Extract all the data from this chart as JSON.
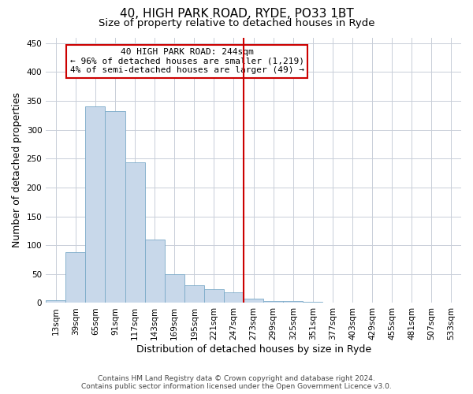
{
  "title": "40, HIGH PARK ROAD, RYDE, PO33 1BT",
  "subtitle": "Size of property relative to detached houses in Ryde",
  "xlabel": "Distribution of detached houses by size in Ryde",
  "ylabel": "Number of detached properties",
  "categories": [
    "13sqm",
    "39sqm",
    "65sqm",
    "91sqm",
    "117sqm",
    "143sqm",
    "169sqm",
    "195sqm",
    "221sqm",
    "247sqm",
    "273sqm",
    "299sqm",
    "325sqm",
    "351sqm",
    "377sqm",
    "403sqm",
    "429sqm",
    "455sqm",
    "481sqm",
    "507sqm",
    "533sqm"
  ],
  "values": [
    5,
    88,
    340,
    333,
    244,
    110,
    50,
    30,
    24,
    18,
    8,
    4,
    3,
    2,
    1,
    0,
    1,
    0,
    0,
    0,
    0
  ],
  "bar_color": "#c8d8ea",
  "bar_edge_color": "#7aaac8",
  "grid_color": "#c8ced8",
  "vline_x_index": 9.5,
  "vline_color": "#cc0000",
  "annotation_text": "40 HIGH PARK ROAD: 244sqm\n← 96% of detached houses are smaller (1,219)\n4% of semi-detached houses are larger (49) →",
  "annotation_box_color": "#ffffff",
  "annotation_box_edge": "#cc0000",
  "footer_line1": "Contains HM Land Registry data © Crown copyright and database right 2024.",
  "footer_line2": "Contains public sector information licensed under the Open Government Licence v3.0.",
  "ylim": [
    0,
    460
  ],
  "yticks": [
    0,
    50,
    100,
    150,
    200,
    250,
    300,
    350,
    400,
    450
  ],
  "title_fontsize": 11,
  "subtitle_fontsize": 9.5,
  "axis_label_fontsize": 9,
  "tick_fontsize": 7.5,
  "annotation_fontsize": 8,
  "footer_fontsize": 6.5
}
